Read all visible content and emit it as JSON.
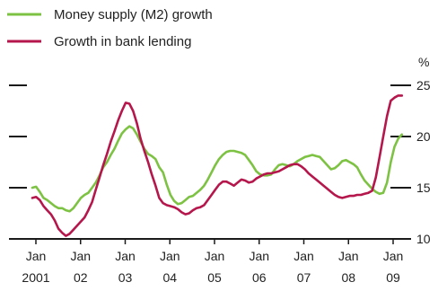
{
  "chart_data": {
    "type": "line",
    "unit": "%",
    "ylim": [
      10,
      25
    ],
    "yticks": [
      "10",
      "15",
      "20",
      "25"
    ],
    "xlim": [
      0,
      100
    ],
    "xticks": [
      {
        "month": "Jan",
        "year": "2001"
      },
      {
        "month": "Jan",
        "year": "02"
      },
      {
        "month": "Jan",
        "year": "03"
      },
      {
        "month": "Jan",
        "year": "04"
      },
      {
        "month": "Jan",
        "year": "05"
      },
      {
        "month": "Jan",
        "year": "06"
      },
      {
        "month": "Jan",
        "year": "07"
      },
      {
        "month": "Jan",
        "year": "08"
      },
      {
        "month": "Jan",
        "year": "09"
      }
    ],
    "legend_position": "top-left",
    "grid": false,
    "series": [
      {
        "name": "Money supply (M2) growth",
        "color": "#7dc242",
        "x": [
          0,
          1,
          2,
          3,
          4,
          5,
          6,
          7,
          8,
          9,
          10,
          11,
          12,
          13,
          14,
          15,
          16,
          17,
          18,
          19,
          20,
          21,
          22,
          23,
          24,
          25,
          26,
          27,
          28,
          29,
          30,
          31,
          32,
          33,
          34,
          35,
          36,
          37,
          38,
          39,
          40,
          41,
          42,
          43,
          44,
          45,
          46,
          47,
          48,
          49,
          50,
          51,
          52,
          53,
          54,
          55,
          56,
          57,
          58,
          59,
          60,
          61,
          62,
          63,
          64,
          65,
          66,
          67,
          68,
          69,
          70,
          71,
          72,
          73,
          74,
          75,
          76,
          77,
          78,
          79,
          80,
          81,
          82,
          83,
          84,
          85,
          86,
          87,
          88,
          89,
          90,
          91,
          92,
          93,
          94,
          95,
          96,
          97,
          98,
          99
        ],
        "y": [
          15,
          15.1,
          14.6,
          14,
          13.8,
          13.5,
          13.2,
          13,
          13,
          12.8,
          12.7,
          13,
          13.5,
          14,
          14.3,
          14.5,
          15,
          15.5,
          16.2,
          17,
          17.5,
          18.2,
          18.8,
          19.6,
          20.3,
          20.7,
          21,
          20.8,
          20.2,
          19.5,
          18.8,
          18.3,
          18.1,
          17.8,
          17,
          16.5,
          15.3,
          14.3,
          13.7,
          13.4,
          13.5,
          13.8,
          14.1,
          14.2,
          14.5,
          14.8,
          15.2,
          15.8,
          16.5,
          17.2,
          17.8,
          18.2,
          18.5,
          18.6,
          18.6,
          18.5,
          18.4,
          18.2,
          17.7,
          17.2,
          16.6,
          16.3,
          16.2,
          16.2,
          16.3,
          16.8,
          17.2,
          17.3,
          17.2,
          17.1,
          17.3,
          17.6,
          17.8,
          18,
          18.1,
          18.2,
          18.1,
          18,
          17.6,
          17.2,
          16.8,
          16.9,
          17.2,
          17.6,
          17.7,
          17.5,
          17.3,
          17,
          16.3,
          15.7,
          15.3,
          14.9,
          14.6,
          14.4,
          14.5,
          15.5,
          17.5,
          19,
          19.8,
          20.2
        ]
      },
      {
        "name": "Growth in bank lending",
        "color": "#b5174c",
        "x": [
          0,
          1,
          2,
          3,
          4,
          5,
          6,
          7,
          8,
          9,
          10,
          11,
          12,
          13,
          14,
          15,
          16,
          17,
          18,
          19,
          20,
          21,
          22,
          23,
          24,
          25,
          26,
          27,
          28,
          29,
          30,
          31,
          32,
          33,
          34,
          35,
          36,
          37,
          38,
          39,
          40,
          41,
          42,
          43,
          44,
          45,
          46,
          47,
          48,
          49,
          50,
          51,
          52,
          53,
          54,
          55,
          56,
          57,
          58,
          59,
          60,
          61,
          62,
          63,
          64,
          65,
          66,
          67,
          68,
          69,
          70,
          71,
          72,
          73,
          74,
          75,
          76,
          77,
          78,
          79,
          80,
          81,
          82,
          83,
          84,
          85,
          86,
          87,
          88,
          89,
          90,
          91,
          92,
          93,
          94,
          95,
          96,
          97,
          98,
          99
        ],
        "y": [
          14,
          14.1,
          13.8,
          13.2,
          12.8,
          12.4,
          11.8,
          11,
          10.6,
          10.3,
          10.5,
          10.9,
          11.3,
          11.7,
          12.1,
          12.8,
          13.6,
          14.8,
          16,
          17.2,
          18.3,
          19.5,
          20.5,
          21.6,
          22.5,
          23.3,
          23.2,
          22.5,
          21.3,
          19.8,
          18.6,
          17.5,
          16.3,
          15.2,
          14,
          13.5,
          13.3,
          13.2,
          13.1,
          12.9,
          12.6,
          12.4,
          12.5,
          12.8,
          13,
          13.1,
          13.3,
          13.8,
          14.3,
          14.8,
          15.3,
          15.6,
          15.6,
          15.4,
          15.2,
          15.5,
          15.8,
          15.7,
          15.5,
          15.6,
          15.9,
          16.1,
          16.3,
          16.4,
          16.4,
          16.5,
          16.6,
          16.8,
          17,
          17.2,
          17.3,
          17.3,
          17.1,
          16.8,
          16.4,
          16.1,
          15.8,
          15.5,
          15.2,
          14.9,
          14.6,
          14.3,
          14.1,
          14,
          14.1,
          14.2,
          14.2,
          14.3,
          14.3,
          14.4,
          14.5,
          14.7,
          16,
          18,
          20,
          22,
          23.5,
          23.8,
          24,
          24
        ]
      }
    ]
  }
}
